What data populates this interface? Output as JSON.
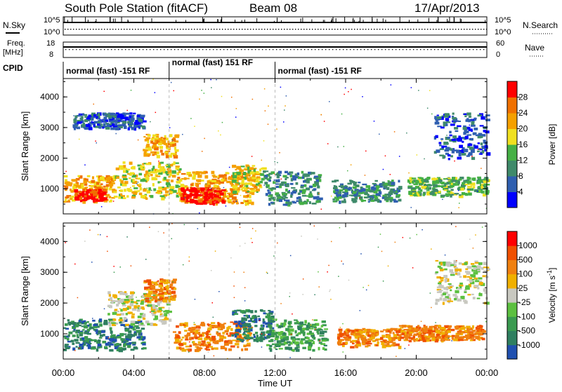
{
  "header": {
    "station": "South Pole Station (fitACF)",
    "beam": "Beam 08",
    "date": "17/Apr/2013"
  },
  "side_labels": {
    "nsky": "N.Sky",
    "nsearch": "N.Search",
    "freq_line1": "Freq.",
    "freq_line2": "[MHz]",
    "nave": "Nave",
    "cpid": "CPID"
  },
  "strip_ticks": {
    "nsky_left": [
      "10^5",
      "10^0"
    ],
    "nsky_right": [
      "10^5",
      "10^0"
    ],
    "freq_left": [
      "18",
      "8"
    ],
    "nave_right": [
      "60",
      "0"
    ]
  },
  "cpid_segments": [
    {
      "label": "normal (fast) -151 RF",
      "start": 0,
      "end": 6
    },
    {
      "label": "normal (fast) 151 RF",
      "start": 6,
      "end": 12
    },
    {
      "label": "normal (fast) -151 RF",
      "start": 12,
      "end": 24
    }
  ],
  "chart_data": [
    {
      "type": "heatmap",
      "name": "power",
      "ylabel": "Slant Range [km]",
      "xlabel": "Time UT",
      "xlim": [
        0,
        24
      ],
      "ylim": [
        180,
        4600
      ],
      "yticks": [
        "1000",
        "2000",
        "3000",
        "4000"
      ],
      "colorbar": {
        "label": "Power [dB]",
        "ticks": [
          "4",
          "8",
          "12",
          "16",
          "20",
          "24",
          "28"
        ],
        "colors": [
          "#0000ff",
          "#2f5fb0",
          "#3f8a6a",
          "#45b045",
          "#f0e020",
          "#f5a000",
          "#f07000",
          "#ff0000"
        ]
      },
      "regions": [
        {
          "t0": 0.0,
          "t1": 2.8,
          "r0": 600,
          "r1": 1450,
          "lvl": 5
        },
        {
          "t0": 0.6,
          "t1": 2.3,
          "r0": 650,
          "r1": 1000,
          "lvl": 7
        },
        {
          "t0": 2.8,
          "t1": 6.5,
          "r0": 700,
          "r1": 1900,
          "lvl": 4
        },
        {
          "t0": 4.5,
          "t1": 6.4,
          "r0": 2100,
          "r1": 2800,
          "lvl": 5
        },
        {
          "t0": 6.4,
          "t1": 10.8,
          "r0": 550,
          "r1": 1600,
          "lvl": 5
        },
        {
          "t0": 6.6,
          "t1": 9.0,
          "r0": 550,
          "r1": 1050,
          "lvl": 7
        },
        {
          "t0": 9.5,
          "t1": 11.3,
          "r0": 900,
          "r1": 1800,
          "lvl": 4
        },
        {
          "t0": 11.3,
          "t1": 14.5,
          "r0": 500,
          "r1": 1600,
          "lvl": 2
        },
        {
          "t0": 15.2,
          "t1": 19.0,
          "r0": 600,
          "r1": 1300,
          "lvl": 2
        },
        {
          "t0": 19.5,
          "t1": 24.0,
          "r0": 800,
          "r1": 1400,
          "lvl": 3
        },
        {
          "t0": 21.0,
          "t1": 24.0,
          "r0": 2000,
          "r1": 3500,
          "lvl": 1
        },
        {
          "t0": 0.5,
          "t1": 4.5,
          "r0": 3000,
          "r1": 3500,
          "lvl": 1
        }
      ]
    },
    {
      "type": "heatmap",
      "name": "velocity",
      "ylabel": "Slant Range [km]",
      "xlabel": "Time UT",
      "xlim": [
        0,
        24
      ],
      "ylim": [
        180,
        4600
      ],
      "yticks": [
        "1000",
        "2000",
        "3000",
        "4000"
      ],
      "xticks": [
        "00:00",
        "04:00",
        "08:00",
        "12:00",
        "16:00",
        "20:00",
        "00:00"
      ],
      "colorbar": {
        "label": "Velocity [m s^-1]",
        "ticks": [
          "1000",
          "500",
          "100",
          "25",
          "-25",
          "-100",
          "-500",
          "-1000"
        ],
        "colors": [
          "#2050b0",
          "#2f7f60",
          "#3a9a50",
          "#5cc040",
          "#c8c8c0",
          "#f0b000",
          "#f08010",
          "#f05000",
          "#ff0000"
        ]
      },
      "regions": [
        {
          "t0": 0.0,
          "t1": 4.5,
          "r0": 500,
          "r1": 1500,
          "lvl": 1
        },
        {
          "t0": 2.5,
          "t1": 6.0,
          "r0": 1300,
          "r1": 2400,
          "lvl": 4
        },
        {
          "t0": 4.5,
          "t1": 6.3,
          "r0": 2100,
          "r1": 2800,
          "lvl": 6
        },
        {
          "t0": 6.2,
          "t1": 10.5,
          "r0": 500,
          "r1": 1400,
          "lvl": 6
        },
        {
          "t0": 9.5,
          "t1": 11.8,
          "r0": 800,
          "r1": 1800,
          "lvl": 1
        },
        {
          "t0": 11.5,
          "t1": 14.8,
          "r0": 500,
          "r1": 1500,
          "lvl": 2
        },
        {
          "t0": 15.5,
          "t1": 19.0,
          "r0": 600,
          "r1": 1200,
          "lvl": 6
        },
        {
          "t0": 19.0,
          "t1": 23.8,
          "r0": 800,
          "r1": 1300,
          "lvl": 6
        },
        {
          "t0": 21.0,
          "t1": 24.0,
          "r0": 2000,
          "r1": 3400,
          "lvl": 4
        }
      ]
    }
  ]
}
